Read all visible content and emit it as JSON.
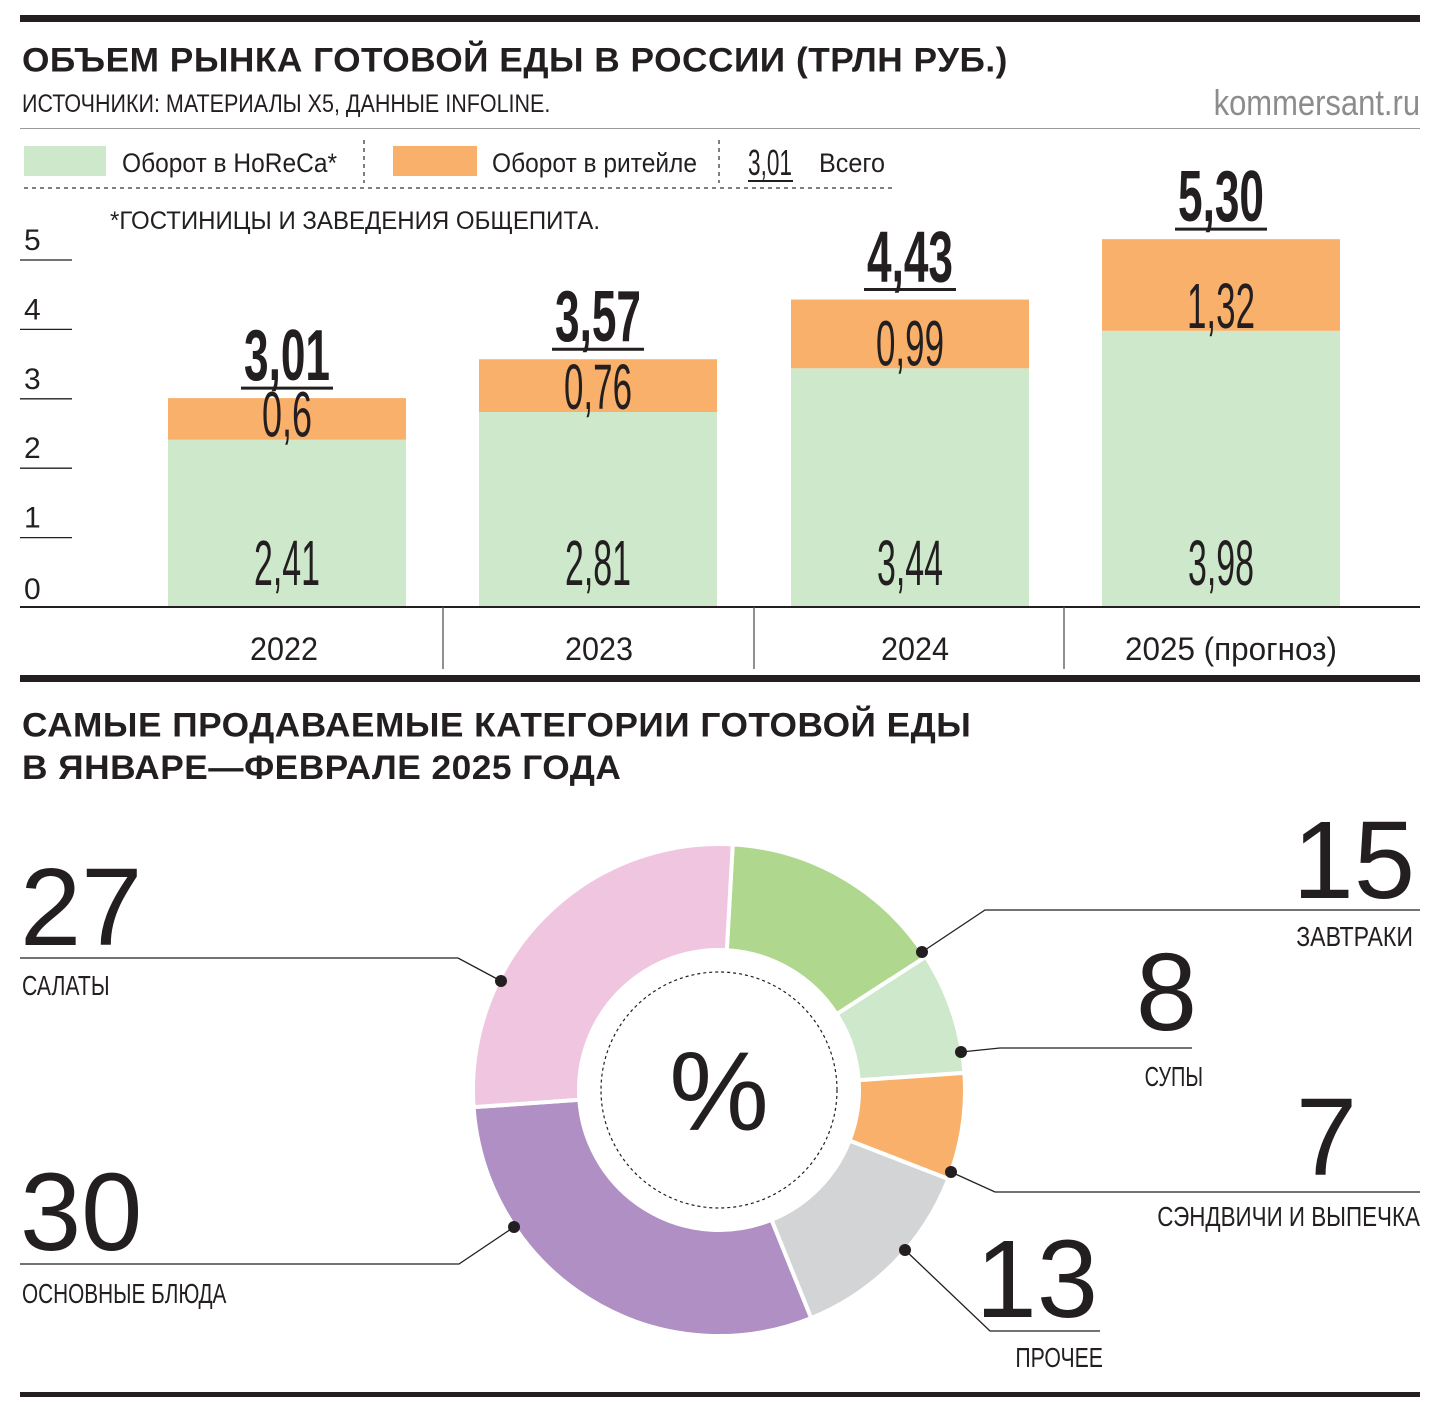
{
  "header": {
    "title": "ОБЪЕМ РЫНКА ГОТОВОЙ ЕДЫ В РОССИИ (ТРЛН РУБ.)",
    "source": "ИСТОЧНИКИ: МАТЕРИАЛЫ X5, ДАННЫЕ INFOLINE.",
    "site": "kommersant.ru"
  },
  "legend": {
    "horeca": "Оборот в HoReCa*",
    "retail": "Оборот в ритейле",
    "total_sample": "3,01",
    "total": "Всего",
    "footnote": "*ГОСТИНИЦЫ И ЗАВЕДЕНИЯ ОБЩЕПИТА."
  },
  "section2": {
    "title_line1": "САМЫЕ ПРОДАВАЕМЫЕ КАТЕГОРИИ ГОТОВОЙ ЕДЫ",
    "title_line2": "В ЯНВАРЕ—ФЕВРАЛЕ 2025 ГОДА"
  },
  "colors": {
    "horeca": "#cde8cb",
    "retail": "#f8b06a",
    "ink": "#231f20"
  },
  "chart_data": [
    {
      "type": "bar",
      "title": "ОБЪЕМ РЫНКА ГОТОВОЙ ЕДЫ В РОССИИ (ТРЛН РУБ.)",
      "stacked": true,
      "categories": [
        "2022",
        "2023",
        "2024",
        "2025 (прогноз)"
      ],
      "series": [
        {
          "name": "Оборот в HoReCa*",
          "values": [
            2.41,
            2.81,
            3.44,
            3.98
          ],
          "labels": [
            "2,41",
            "2,81",
            "3,44",
            "3,98"
          ],
          "color": "#cde8cb"
        },
        {
          "name": "Оборот в ритейле",
          "values": [
            0.6,
            0.76,
            0.99,
            1.32
          ],
          "labels": [
            "0,6",
            "0,76",
            "0,99",
            "1,32"
          ],
          "color": "#f8b06a"
        }
      ],
      "totals": {
        "name": "Всего",
        "values": [
          3.01,
          3.57,
          4.43,
          5.3
        ],
        "labels": [
          "3,01",
          "3,57",
          "4,43",
          "5,30"
        ]
      },
      "y_ticks": [
        "0",
        "1",
        "2",
        "3",
        "4",
        "5"
      ],
      "ylim": [
        0,
        5
      ],
      "legend_position": "top-left"
    },
    {
      "type": "pie",
      "title": "САМЫЕ ПРОДАВАЕМЫЕ КАТЕГОРИИ ГОТОВОЙ ЕДЫ В ЯНВАРЕ—ФЕВРАЛЕ 2025 ГОДА",
      "center_label": "%",
      "slices": [
        {
          "label": "ЗАВТРАКИ",
          "value": 15,
          "color": "#b0d78e"
        },
        {
          "label": "СУПЫ",
          "value": 8,
          "color": "#cde8cb"
        },
        {
          "label": "СЭНДВИЧИ И ВЫПЕЧКА",
          "value": 7,
          "color": "#f8b06a"
        },
        {
          "label": "ПРОЧЕЕ",
          "value": 13,
          "color": "#d3d4d6"
        },
        {
          "label": "ОСНОВНЫЕ БЛЮДА",
          "value": 30,
          "color": "#af8fc4"
        },
        {
          "label": "САЛАТЫ",
          "value": 27,
          "color": "#f0c5df"
        }
      ]
    }
  ]
}
